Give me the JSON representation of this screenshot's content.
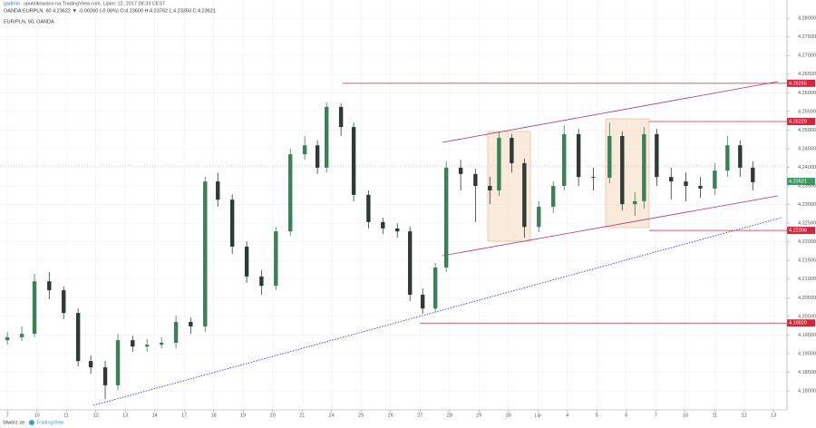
{
  "header": {
    "author": "gadmin",
    "published": "opublikowano na TradingView.com, Lipiec 12, 2017 08:33 CEST",
    "quote": "OANDA:EURPLN, 60  4.23622 ▼ -0.00260 (-0.06%) O:4.23600 H:4.23762 L:4.23350 C:4.23621",
    "footer_left": "Stwórz ze",
    "footer_brand": "TradingView"
  },
  "chart_data": {
    "type": "candlestick",
    "title": "EUR/PLN, 60, OANDA",
    "up_color": "#3d7f57",
    "down_color": "#2f3a35",
    "grid": true,
    "x": [
      0,
      0.49,
      0.92,
      1.42,
      1.91,
      2.4,
      2.83,
      3.32,
      3.75,
      4.25,
      4.74,
      5.23,
      5.72,
      6.22,
      6.71,
      7.14,
      7.63,
      8.12,
      8.62,
      9.11,
      9.6,
      10.09,
      10.52,
      10.83,
      11.32,
      11.75,
      12.25,
      12.74,
      13.23,
      13.66,
      14.09,
      14.52,
      14.89,
      15.38,
      15.88,
      16.37,
      16.68,
      17.11,
      17.54,
      18.03,
      18.52,
      18.89,
      19.38,
      19.88,
      20.43,
      20.86,
      21.29,
      21.6,
      22.03,
      22.52,
      23.02,
      23.51,
      24.0,
      24.43,
      24.86,
      25.29
    ],
    "open": [
      4.1936,
      4.1944,
      4.1953,
      4.2094,
      4.207,
      4.2009,
      4.188,
      4.1863,
      4.1815,
      4.1936,
      4.1919,
      4.1924,
      4.1929,
      4.1985,
      4.1973,
      4.2362,
      4.2313,
      4.2187,
      4.2107,
      4.2082,
      4.2228,
      4.2435,
      4.2459,
      4.2399,
      4.2562,
      4.2508,
      4.2326,
      4.2253,
      4.2236,
      4.2228,
      4.2058,
      4.2021,
      4.2131,
      4.2399,
      4.2382,
      4.235,
      4.2338,
      4.2479,
      4.2411,
      4.224,
      4.2294,
      4.235,
      4.2489,
      4.2374,
      4.2372,
      4.2484,
      4.2301,
      4.2309,
      4.2489,
      4.2374,
      4.2362,
      4.235,
      4.2343,
      4.2391,
      4.2459,
      4.2399
    ],
    "high": [
      4.1958,
      4.1973,
      4.2114,
      4.2119,
      4.208,
      4.2021,
      4.1895,
      4.188,
      4.1953,
      4.1948,
      4.1939,
      4.1944,
      4.2002,
      4.1997,
      4.2374,
      4.2386,
      4.2328,
      4.2201,
      4.2124,
      4.224,
      4.245,
      4.2484,
      4.2472,
      4.2574,
      4.2571,
      4.252,
      4.2338,
      4.2265,
      4.225,
      4.224,
      4.2075,
      4.2143,
      4.2416,
      4.242,
      4.2396,
      4.2374,
      4.2496,
      4.2489,
      4.2423,
      4.2309,
      4.2362,
      4.2513,
      4.2503,
      4.2399,
      4.252,
      4.2496,
      4.2333,
      4.2508,
      4.2503,
      4.2399,
      4.2386,
      4.2374,
      4.2411,
      4.2484,
      4.2472,
      4.2416
    ],
    "low": [
      4.1924,
      4.1934,
      4.1944,
      4.2046,
      4.1992,
      4.1866,
      4.1846,
      4.1778,
      4.1802,
      4.1905,
      4.1905,
      4.1914,
      4.1914,
      4.1953,
      4.1958,
      4.2294,
      4.2167,
      4.209,
      4.2058,
      4.207,
      4.2216,
      4.242,
      4.2382,
      4.2386,
      4.2484,
      4.2309,
      4.2236,
      4.2221,
      4.2211,
      4.2041,
      4.2007,
      4.2012,
      4.2119,
      4.2338,
      4.2253,
      4.2301,
      4.2323,
      4.2386,
      4.2211,
      4.2226,
      4.2277,
      4.2338,
      4.235,
      4.2338,
      4.2357,
      4.2284,
      4.227,
      4.2289,
      4.235,
      4.2313,
      4.2309,
      4.2318,
      4.2326,
      4.2374,
      4.2374,
      4.2338
    ],
    "close": [
      4.1944,
      4.1953,
      4.2094,
      4.207,
      4.2009,
      4.188,
      4.1863,
      4.1815,
      4.1936,
      4.1919,
      4.1924,
      4.1929,
      4.1985,
      4.1973,
      4.2362,
      4.2313,
      4.2187,
      4.2107,
      4.2082,
      4.2228,
      4.2435,
      4.2459,
      4.2399,
      4.2562,
      4.2508,
      4.2326,
      4.2253,
      4.2236,
      4.2228,
      4.2058,
      4.2021,
      4.2131,
      4.2399,
      4.2382,
      4.235,
      4.2338,
      4.2479,
      4.2411,
      4.224,
      4.2294,
      4.235,
      4.2489,
      4.2374,
      4.2372,
      4.2484,
      4.2301,
      4.2309,
      4.2489,
      4.2374,
      4.2362,
      4.235,
      4.2343,
      4.2391,
      4.2459,
      4.2399,
      4.236
    ],
    "xlim": [
      -0.25,
      26.45
    ],
    "xticks": [
      {
        "value": 0,
        "label": "7"
      },
      {
        "value": 1,
        "label": "10"
      },
      {
        "value": 2,
        "label": "11"
      },
      {
        "value": 3,
        "label": "12"
      },
      {
        "value": 4,
        "label": "13"
      },
      {
        "value": 5,
        "label": "14"
      },
      {
        "value": 6,
        "label": "17"
      },
      {
        "value": 7,
        "label": "18"
      },
      {
        "value": 8,
        "label": "19"
      },
      {
        "value": 9,
        "label": "20"
      },
      {
        "value": 10,
        "label": "21"
      },
      {
        "value": 11,
        "label": "24"
      },
      {
        "value": 12,
        "label": "25"
      },
      {
        "value": 13,
        "label": "26"
      },
      {
        "value": 14,
        "label": "27"
      },
      {
        "value": 15,
        "label": "28"
      },
      {
        "value": 16,
        "label": "29"
      },
      {
        "value": 17,
        "label": "30"
      },
      {
        "value": 18,
        "label": "Lip"
      },
      {
        "value": 19,
        "label": "4"
      },
      {
        "value": 20,
        "label": "5"
      },
      {
        "value": 21,
        "label": "6"
      },
      {
        "value": 22,
        "label": "7"
      },
      {
        "value": 23,
        "label": "10"
      },
      {
        "value": 24,
        "label": "11"
      },
      {
        "value": 25,
        "label": "12"
      },
      {
        "value": 26,
        "label": "13"
      }
    ],
    "ylim": [
      4.1749,
      4.2849
    ],
    "yticks": [
      {
        "value": 4.18,
        "label": "4.18000"
      },
      {
        "value": 4.185,
        "label": "4.18500"
      },
      {
        "value": 4.19,
        "label": "4.19000"
      },
      {
        "value": 4.195,
        "label": "4.19500"
      },
      {
        "value": 4.2,
        "label": "4.20000"
      },
      {
        "value": 4.205,
        "label": "4.20500"
      },
      {
        "value": 4.21,
        "label": "4.21000"
      },
      {
        "value": 4.215,
        "label": "4.21500"
      },
      {
        "value": 4.22,
        "label": "4.22000"
      },
      {
        "value": 4.225,
        "label": "4.22500"
      },
      {
        "value": 4.23,
        "label": "4.23000"
      },
      {
        "value": 4.235,
        "label": "4.23500"
      },
      {
        "value": 4.24,
        "label": "4.24000"
      },
      {
        "value": 4.245,
        "label": "4.24500"
      },
      {
        "value": 4.25,
        "label": "4.25000"
      },
      {
        "value": 4.255,
        "label": "4.25500"
      },
      {
        "value": 4.26,
        "label": "4.26000"
      },
      {
        "value": 4.265,
        "label": "4.26500"
      },
      {
        "value": 4.27,
        "label": "4.27000"
      },
      {
        "value": 4.275,
        "label": "4.27500"
      },
      {
        "value": 4.28,
        "label": "4.28000"
      }
    ],
    "levels": [
      {
        "value": 4.26255,
        "label": "4.26255"
      },
      {
        "value": 4.25229,
        "label": "4.25229"
      },
      {
        "value": 4.22306,
        "label": "4.22306"
      },
      {
        "value": 4.1982,
        "label": "4.19820"
      }
    ],
    "level_color": "#d0263b",
    "last_price": {
      "value": 4.23621,
      "label": "4.23621"
    },
    "last_color": "#3d9a62"
  }
}
